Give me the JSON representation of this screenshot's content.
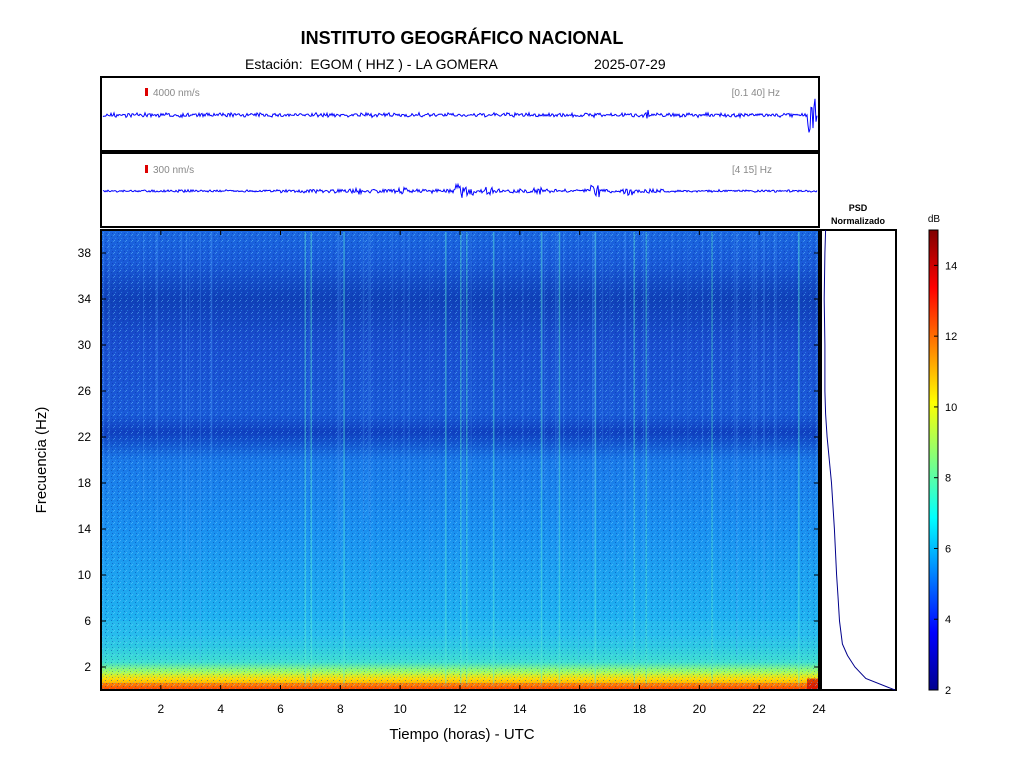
{
  "header": {
    "title": "INSTITUTO GEOGRÁFICO NACIONAL",
    "station_line": "Estación:  EGOM ( HHZ ) - LA GOMERA",
    "date": "2025-07-29"
  },
  "traces": [
    {
      "amplitude_label": "4000 nm/s",
      "band_label": "[0.1 40] Hz",
      "color": "#0000ff",
      "scale_color": "#dd0000"
    },
    {
      "amplitude_label": "300 nm/s",
      "band_label": "[4 15] Hz",
      "color": "#0000ff",
      "scale_color": "#dd0000"
    }
  ],
  "psd": {
    "title_line1": "PSD",
    "title_line2": "Normalizado",
    "color": "#00008b"
  },
  "colorbar": {
    "unit": "dB",
    "ticks": [
      2,
      4,
      6,
      8,
      10,
      12,
      14
    ],
    "range": [
      2,
      15
    ],
    "colors": [
      "#00008f",
      "#0000ff",
      "#0080ff",
      "#00ffff",
      "#80ff80",
      "#ffff00",
      "#ff8000",
      "#ff0000",
      "#800000"
    ]
  },
  "chart_data": {
    "type": "heatmap",
    "title": "INSTITUTO GEOGRÁFICO NACIONAL",
    "xlabel": "Tiempo (horas) - UTC",
    "ylabel": "Frecuencia  (Hz)",
    "xlim": [
      0,
      24
    ],
    "ylim": [
      0,
      40
    ],
    "x_ticks": [
      2,
      4,
      6,
      8,
      10,
      12,
      14,
      16,
      18,
      20,
      22,
      24
    ],
    "y_ticks": [
      2,
      6,
      10,
      14,
      18,
      22,
      26,
      30,
      34,
      38
    ],
    "color_scale": "jet",
    "color_range_db": [
      2,
      15
    ],
    "dominant_band_hz": [
      0,
      2
    ],
    "psd_normalized_profile": {
      "frequency_hz": [
        0,
        1,
        2,
        3,
        4,
        6,
        8,
        10,
        14,
        18,
        22,
        24,
        26,
        30,
        34,
        38,
        40
      ],
      "value": [
        1.0,
        0.6,
        0.45,
        0.35,
        0.28,
        0.24,
        0.22,
        0.2,
        0.17,
        0.13,
        0.07,
        0.05,
        0.04,
        0.04,
        0.03,
        0.04,
        0.05
      ]
    }
  }
}
